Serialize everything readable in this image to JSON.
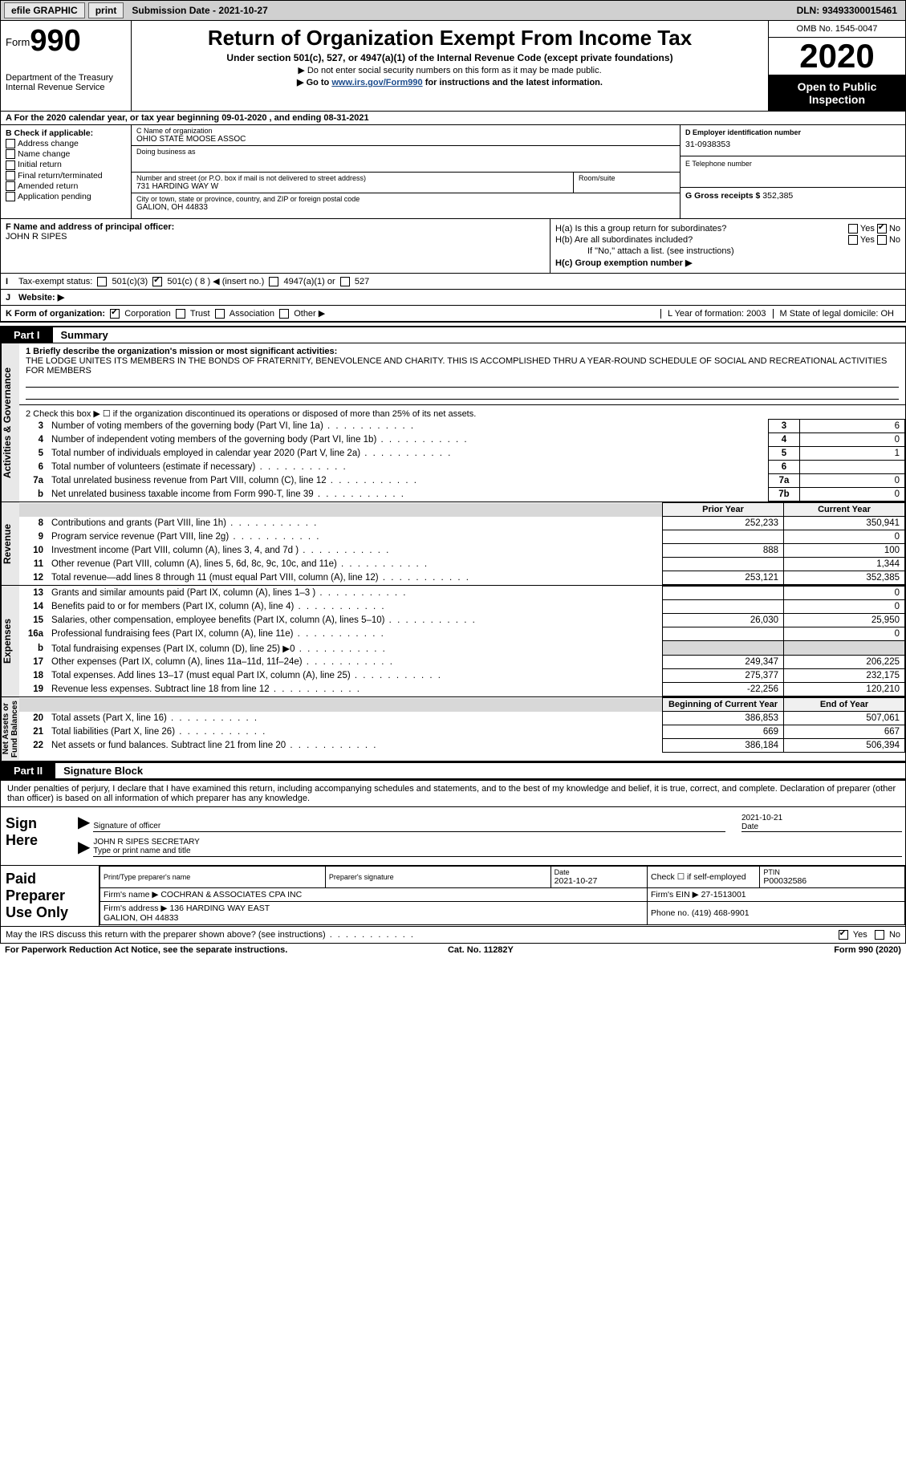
{
  "topbar": {
    "efile": "efile GRAPHIC",
    "print": "print",
    "submission_label": "Submission Date - ",
    "submission_date": "2021-10-27",
    "dln_label": "DLN: ",
    "dln": "93493300015461"
  },
  "header": {
    "form_word": "Form",
    "form_num": "990",
    "dept": "Department of the Treasury\nInternal Revenue Service",
    "title": "Return of Organization Exempt From Income Tax",
    "sub": "Under section 501(c), 527, or 4947(a)(1) of the Internal Revenue Code (except private foundations)",
    "note1": "▶ Do not enter social security numbers on this form as it may be made public.",
    "note2_pre": "▶ Go to ",
    "note2_link": "www.irs.gov/Form990",
    "note2_post": " for instructions and the latest information.",
    "omb": "OMB No. 1545-0047",
    "year": "2020",
    "open_public": "Open to Public\nInspection"
  },
  "taxyear": "A For the 2020 calendar year, or tax year beginning 09-01-2020   , and ending 08-31-2021",
  "B": {
    "label": "B Check if applicable:",
    "items": [
      "Address change",
      "Name change",
      "Initial return",
      "Final return/terminated",
      "Amended return",
      "Application pending"
    ]
  },
  "C": {
    "name_label": "C Name of organization",
    "name": "OHIO STATE MOOSE ASSOC",
    "dba_label": "Doing business as",
    "dba": "",
    "addr_label": "Number and street (or P.O. box if mail is not delivered to street address)",
    "addr": "731 HARDING WAY W",
    "room_label": "Room/suite",
    "city_label": "City or town, state or province, country, and ZIP or foreign postal code",
    "city": "GALION, OH  44833"
  },
  "D": {
    "label": "D Employer identification number",
    "value": "31-0938353"
  },
  "E": {
    "label": "E Telephone number",
    "value": ""
  },
  "G": {
    "label": "G Gross receipts $ ",
    "value": "352,385"
  },
  "F": {
    "label": "F Name and address of principal officer:",
    "value": "JOHN R SIPES"
  },
  "H": {
    "a": "H(a)  Is this a group return for subordinates?",
    "b": "H(b)  Are all subordinates included?",
    "b_note": "If \"No,\" attach a list. (see instructions)",
    "c": "H(c)  Group exemption number ▶",
    "yes": "Yes",
    "no": "No"
  },
  "I": {
    "label": "Tax-exempt status:",
    "opts": [
      "501(c)(3)",
      "501(c) ( 8 ) ◀ (insert no.)",
      "4947(a)(1) or",
      "527"
    ]
  },
  "J": {
    "label": "Website: ▶"
  },
  "K": {
    "label": "K Form of organization:",
    "opts": [
      "Corporation",
      "Trust",
      "Association",
      "Other ▶"
    ],
    "L": "L Year of formation: 2003",
    "M": "M State of legal domicile: OH"
  },
  "part1": {
    "tag": "Part I",
    "title": "Summary",
    "side_gov": "Activities & Governance",
    "side_rev": "Revenue",
    "side_exp": "Expenses",
    "side_net": "Net Assets or\nFund Balances",
    "line1_label": "1   Briefly describe the organization's mission or most significant activities:",
    "line1_text": "THE LODGE UNITES ITS MEMBERS IN THE BONDS OF FRATERNITY, BENEVOLENCE AND CHARITY. THIS IS ACCOMPLISHED THRU A YEAR-ROUND SCHEDULE OF SOCIAL AND RECREATIONAL ACTIVITIES FOR MEMBERS",
    "line2": "2   Check this box ▶ ☐ if the organization discontinued its operations or disposed of more than 25% of its net assets.",
    "rows_simple": [
      {
        "n": "3",
        "desc": "Number of voting members of the governing body (Part VI, line 1a)",
        "box": "3",
        "val": "6"
      },
      {
        "n": "4",
        "desc": "Number of independent voting members of the governing body (Part VI, line 1b)",
        "box": "4",
        "val": "0"
      },
      {
        "n": "5",
        "desc": "Total number of individuals employed in calendar year 2020 (Part V, line 2a)",
        "box": "5",
        "val": "1"
      },
      {
        "n": "6",
        "desc": "Total number of volunteers (estimate if necessary)",
        "box": "6",
        "val": ""
      },
      {
        "n": "7a",
        "desc": "Total unrelated business revenue from Part VIII, column (C), line 12",
        "box": "7a",
        "val": "0"
      },
      {
        "n": "b",
        "desc": "Net unrelated business taxable income from Form 990-T, line 39",
        "box": "7b",
        "val": "0"
      }
    ],
    "col_prior": "Prior Year",
    "col_current": "Current Year",
    "col_begin": "Beginning of Current Year",
    "col_end": "End of Year",
    "rev_rows": [
      {
        "n": "8",
        "desc": "Contributions and grants (Part VIII, line 1h)",
        "py": "252,233",
        "cy": "350,941"
      },
      {
        "n": "9",
        "desc": "Program service revenue (Part VIII, line 2g)",
        "py": "",
        "cy": "0"
      },
      {
        "n": "10",
        "desc": "Investment income (Part VIII, column (A), lines 3, 4, and 7d )",
        "py": "888",
        "cy": "100"
      },
      {
        "n": "11",
        "desc": "Other revenue (Part VIII, column (A), lines 5, 6d, 8c, 9c, 10c, and 11e)",
        "py": "",
        "cy": "1,344"
      },
      {
        "n": "12",
        "desc": "Total revenue—add lines 8 through 11 (must equal Part VIII, column (A), line 12)",
        "py": "253,121",
        "cy": "352,385"
      }
    ],
    "exp_rows": [
      {
        "n": "13",
        "desc": "Grants and similar amounts paid (Part IX, column (A), lines 1–3 )",
        "py": "",
        "cy": "0"
      },
      {
        "n": "14",
        "desc": "Benefits paid to or for members (Part IX, column (A), line 4)",
        "py": "",
        "cy": "0"
      },
      {
        "n": "15",
        "desc": "Salaries, other compensation, employee benefits (Part IX, column (A), lines 5–10)",
        "py": "26,030",
        "cy": "25,950"
      },
      {
        "n": "16a",
        "desc": "Professional fundraising fees (Part IX, column (A), line 11e)",
        "py": "",
        "cy": "0"
      },
      {
        "n": "b",
        "desc": "Total fundraising expenses (Part IX, column (D), line 25) ▶0",
        "py": "grey",
        "cy": "grey"
      },
      {
        "n": "17",
        "desc": "Other expenses (Part IX, column (A), lines 11a–11d, 11f–24e)",
        "py": "249,347",
        "cy": "206,225"
      },
      {
        "n": "18",
        "desc": "Total expenses. Add lines 13–17 (must equal Part IX, column (A), line 25)",
        "py": "275,377",
        "cy": "232,175"
      },
      {
        "n": "19",
        "desc": "Revenue less expenses. Subtract line 18 from line 12",
        "py": "-22,256",
        "cy": "120,210"
      }
    ],
    "net_rows": [
      {
        "n": "20",
        "desc": "Total assets (Part X, line 16)",
        "py": "386,853",
        "cy": "507,061"
      },
      {
        "n": "21",
        "desc": "Total liabilities (Part X, line 26)",
        "py": "669",
        "cy": "667"
      },
      {
        "n": "22",
        "desc": "Net assets or fund balances. Subtract line 21 from line 20",
        "py": "386,184",
        "cy": "506,394"
      }
    ]
  },
  "part2": {
    "tag": "Part II",
    "title": "Signature Block",
    "penalty": "Under penalties of perjury, I declare that I have examined this return, including accompanying schedules and statements, and to the best of my knowledge and belief, it is true, correct, and complete. Declaration of preparer (other than officer) is based on all information of which preparer has any knowledge.",
    "sign_here": "Sign\nHere",
    "sig_officer_label": "Signature of officer",
    "sig_date": "2021-10-21",
    "sig_date_label": "Date",
    "officer_name": "JOHN R SIPES  SECRETARY",
    "officer_name_label": "Type or print name and title",
    "paid_prep": "Paid\nPreparer\nUse Only",
    "prep": {
      "name_label": "Print/Type preparer's name",
      "sig_label": "Preparer's signature",
      "date_label": "Date",
      "date": "2021-10-27",
      "check_label": "Check ☐ if self-employed",
      "ptin_label": "PTIN",
      "ptin": "P00032586",
      "firm_name_label": "Firm's name   ▶ ",
      "firm_name": "COCHRAN & ASSOCIATES CPA INC",
      "firm_ein_label": "Firm's EIN ▶ ",
      "firm_ein": "27-1513001",
      "firm_addr_label": "Firm's address ▶ ",
      "firm_addr": "136 HARDING WAY EAST\nGALION, OH  44833",
      "phone_label": "Phone no. ",
      "phone": "(419) 468-9901"
    },
    "may_irs": "May the IRS discuss this return with the preparer shown above? (see instructions)",
    "yes": "Yes",
    "no": "No"
  },
  "footer": {
    "left": "For Paperwork Reduction Act Notice, see the separate instructions.",
    "mid": "Cat. No. 11282Y",
    "right": "Form 990 (2020)"
  }
}
